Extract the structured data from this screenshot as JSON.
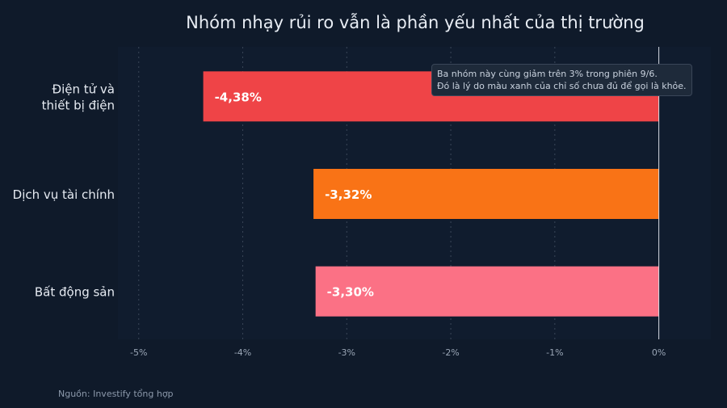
{
  "title": "Nhóm nhạy rủi ro vẫn là phần yếu nhất của thị trường",
  "source": "Nguồn: Investify tổng hợp",
  "annotation": {
    "line1": "Ba nhóm này cùng giảm trên 3% trong phiên 9/6.",
    "line2": "Đó là lý do màu xanh của chỉ số chưa đủ để gọi là khỏe."
  },
  "colors": {
    "background": "#0f1a2a",
    "plot_background": "#101c2e",
    "text": "#e6ebf2",
    "tick": "#9aa6b6"
  },
  "chart_data": {
    "type": "bar",
    "orientation": "horizontal",
    "categories": [
      [
        "Điện tử và",
        "thiết bị điện"
      ],
      [
        "Dịch vụ tài chính"
      ],
      [
        "Bất động sản"
      ]
    ],
    "values": [
      -4.38,
      -3.32,
      -3.3
    ],
    "data_labels": [
      "-4,38%",
      "-3,32%",
      "-3,30%"
    ],
    "bar_colors": [
      "#ef4447",
      "#f97316",
      "#fb7185"
    ],
    "xlim": [
      -5.2,
      0.5
    ],
    "xticks": [
      -5,
      -4,
      -3,
      -2,
      -1,
      0
    ],
    "xtick_labels": [
      "-5%",
      "-4%",
      "-3%",
      "-2%",
      "-1%",
      "0%"
    ],
    "grid": true,
    "zero_line": true
  }
}
